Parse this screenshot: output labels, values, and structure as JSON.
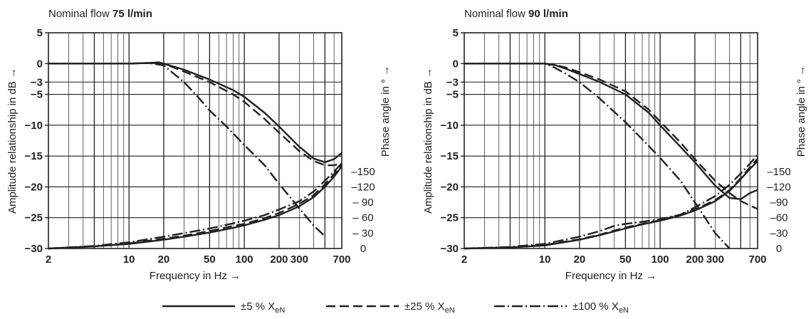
{
  "figure": {
    "legend": [
      {
        "label": "±5 % X",
        "sub": "eN",
        "dash": "solid"
      },
      {
        "label": "±25 % X",
        "sub": "eN",
        "dash": "dash"
      },
      {
        "label": "±100 % X",
        "sub": "eN",
        "dash": "dashdot"
      }
    ]
  },
  "chart_data": [
    {
      "type": "line",
      "title_prefix": "Nominal flow ",
      "title_bold": "75 l/min",
      "xlabel": "Frequency in Hz →",
      "ylabel": "Amplitude relationship in dB →",
      "y2label": "Phase angle in ° →",
      "xscale": "log",
      "xlim": [
        2,
        700
      ],
      "ylim": [
        -30,
        5
      ],
      "y2lim": [
        0,
        180
      ],
      "x_ticks": [
        {
          "v": 2,
          "t": "2"
        },
        {
          "v": 10,
          "t": "10"
        },
        {
          "v": 20,
          "t": "20"
        },
        {
          "v": 50,
          "t": "50"
        },
        {
          "v": 100,
          "t": "100"
        },
        {
          "v": 200,
          "t": "200"
        },
        {
          "v": 300,
          "t": "300"
        },
        {
          "v": 700,
          "t": "700"
        }
      ],
      "y_ticks": [
        {
          "v": 5,
          "t": "5"
        },
        {
          "v": 0,
          "t": "0"
        },
        {
          "v": -3,
          "t": "−3"
        },
        {
          "v": -5,
          "t": "−5"
        },
        {
          "v": -10,
          "t": "−10"
        },
        {
          "v": -15,
          "t": "−15"
        },
        {
          "v": -20,
          "t": "−20"
        },
        {
          "v": -25,
          "t": "−25"
        },
        {
          "v": -30,
          "t": "−30"
        }
      ],
      "y2_ticks": [
        {
          "v": 0,
          "t": "0"
        },
        {
          "v": 30,
          "t": "– 30"
        },
        {
          "v": 60,
          "t": "– 60"
        },
        {
          "v": 90,
          "t": "– 90"
        },
        {
          "v": 120,
          "t": "–120"
        },
        {
          "v": 150,
          "t": "–150"
        }
      ],
      "grid": true,
      "amplitude_series": [
        {
          "name": "±5 % X eN",
          "dash": "solid",
          "x": [
            2,
            5,
            10,
            15,
            18,
            20,
            30,
            50,
            80,
            100,
            150,
            200,
            300,
            400,
            500,
            600,
            700
          ],
          "y": [
            0,
            0,
            0,
            0.1,
            0.2,
            0,
            -1.0,
            -2.6,
            -4.3,
            -5.4,
            -8.0,
            -10.2,
            -13.5,
            -15.4,
            -16.0,
            -15.5,
            -14.5
          ]
        },
        {
          "name": "±25 % X eN",
          "dash": "dash",
          "x": [
            2,
            5,
            10,
            15,
            18,
            20,
            30,
            50,
            80,
            100,
            150,
            200,
            300,
            400,
            500,
            600,
            700
          ],
          "y": [
            0,
            0,
            0,
            0.1,
            0.2,
            0,
            -1.3,
            -3.0,
            -5.0,
            -6.2,
            -9.0,
            -11.2,
            -14.2,
            -15.8,
            -16.5,
            -16.5,
            -16.2
          ]
        },
        {
          "name": "±100 % X eN",
          "dash": "dashdot",
          "x": [
            2,
            5,
            10,
            15,
            20,
            30,
            40,
            50,
            70,
            100,
            150,
            200,
            300,
            400,
            500
          ],
          "y": [
            0,
            0,
            0,
            0.1,
            -0.3,
            -3.0,
            -5.5,
            -7.6,
            -10.2,
            -13.2,
            -16.5,
            -19.5,
            -23.5,
            -26.3,
            -28.0
          ]
        }
      ],
      "phase_series": [
        {
          "name": "±5 % X eN",
          "dash": "solid",
          "x": [
            2,
            5,
            10,
            20,
            30,
            50,
            80,
            100,
            150,
            200,
            300,
            400,
            500,
            600,
            700
          ],
          "y": [
            0,
            4,
            9,
            17,
            23,
            31,
            40,
            45,
            56,
            65,
            82,
            100,
            120,
            140,
            160
          ]
        },
        {
          "name": "±25 % X eN",
          "dash": "dash",
          "x": [
            2,
            5,
            10,
            20,
            30,
            50,
            80,
            100,
            150,
            200,
            300,
            400,
            500,
            600,
            700
          ],
          "y": [
            0,
            4,
            10,
            19,
            25,
            34,
            44,
            48,
            59,
            69,
            87,
            104,
            125,
            145,
            162
          ]
        },
        {
          "name": "±100 % X eN",
          "dash": "dashdot",
          "x": [
            2,
            5,
            10,
            20,
            30,
            50,
            80,
            100,
            150,
            200,
            300,
            400,
            500,
            600,
            700
          ],
          "y": [
            0,
            5,
            12,
            23,
            30,
            39,
            49,
            54,
            65,
            76,
            92,
            111,
            132,
            150,
            166
          ]
        }
      ]
    },
    {
      "type": "line",
      "title_prefix": "Nominal flow ",
      "title_bold": "90 l/min",
      "xlabel": "Frequency in Hz →",
      "ylabel": "Amplitude relationship in dB →",
      "y2label": "Phase angle in ° →",
      "xscale": "log",
      "xlim": [
        2,
        700
      ],
      "ylim": [
        -30,
        5
      ],
      "y2lim": [
        0,
        180
      ],
      "x_ticks": [
        {
          "v": 2,
          "t": "2"
        },
        {
          "v": 10,
          "t": "10"
        },
        {
          "v": 20,
          "t": "20"
        },
        {
          "v": 50,
          "t": "50"
        },
        {
          "v": 100,
          "t": "100"
        },
        {
          "v": 200,
          "t": "200"
        },
        {
          "v": 300,
          "t": "300"
        },
        {
          "v": 700,
          "t": "700"
        }
      ],
      "y_ticks": [
        {
          "v": 5,
          "t": "5"
        },
        {
          "v": 0,
          "t": "0"
        },
        {
          "v": -3,
          "t": "−3"
        },
        {
          "v": -5,
          "t": "−5"
        },
        {
          "v": -10,
          "t": "−10"
        },
        {
          "v": -15,
          "t": "−15"
        },
        {
          "v": -20,
          "t": "−20"
        },
        {
          "v": -25,
          "t": "−25"
        },
        {
          "v": -30,
          "t": "−30"
        }
      ],
      "y2_ticks": [
        {
          "v": 0,
          "t": "0"
        },
        {
          "v": 30,
          "t": "–30"
        },
        {
          "v": 60,
          "t": "–60"
        },
        {
          "v": 90,
          "t": "–90"
        },
        {
          "v": 120,
          "t": "–120"
        },
        {
          "v": 150,
          "t": "–150"
        }
      ],
      "grid": true,
      "amplitude_series": [
        {
          "name": "±5 % X eN",
          "dash": "solid",
          "x": [
            2,
            5,
            10,
            12,
            15,
            20,
            30,
            50,
            80,
            100,
            150,
            200,
            300,
            400,
            500,
            600,
            700
          ],
          "y": [
            0,
            0,
            0,
            -0.2,
            -0.8,
            -1.7,
            -3.0,
            -5.0,
            -8.0,
            -10.0,
            -13.5,
            -16.0,
            -19.8,
            -21.8,
            -22.0,
            -21.0,
            -20.5
          ]
        },
        {
          "name": "±25 % X eN",
          "dash": "dash",
          "x": [
            2,
            5,
            10,
            12,
            15,
            20,
            30,
            50,
            80,
            100,
            150,
            200,
            300,
            400,
            500,
            600,
            700
          ],
          "y": [
            0,
            0,
            0,
            -0.2,
            -0.6,
            -1.4,
            -2.6,
            -4.5,
            -7.5,
            -9.4,
            -12.8,
            -15.5,
            -19.0,
            -21.0,
            -22.3,
            -23.0,
            -23.6
          ]
        },
        {
          "name": "±100 % X eN",
          "dash": "dashdot",
          "x": [
            2,
            5,
            10,
            12,
            15,
            20,
            30,
            50,
            80,
            100,
            150,
            200,
            300,
            400
          ],
          "y": [
            0,
            0,
            0,
            -0.6,
            -1.6,
            -3.0,
            -5.7,
            -9.5,
            -13.4,
            -15.3,
            -19.0,
            -22.5,
            -27.5,
            -30.0
          ]
        }
      ],
      "phase_series": [
        {
          "name": "±5 % X eN",
          "dash": "solid",
          "x": [
            2,
            5,
            10,
            20,
            30,
            50,
            70,
            100,
            150,
            200,
            300,
            400,
            500,
            600,
            700
          ],
          "y": [
            0,
            2,
            6,
            17,
            26,
            39,
            47,
            54,
            64,
            74,
            92,
            112,
            135,
            155,
            170
          ]
        },
        {
          "name": "±25 % X eN",
          "dash": "dash",
          "x": [
            2,
            5,
            10,
            20,
            30,
            50,
            70,
            100,
            150,
            200,
            300,
            400,
            500,
            600,
            700
          ],
          "y": [
            0,
            2,
            7,
            18,
            27,
            41,
            48,
            55,
            66,
            76,
            94,
            114,
            137,
            158,
            175
          ]
        },
        {
          "name": "±100 % X eN",
          "dash": "dashdot",
          "x": [
            2,
            5,
            10,
            20,
            30,
            40,
            50,
            70,
            100,
            150,
            200,
            300,
            400,
            500,
            600,
            700
          ],
          "y": [
            0,
            3,
            9,
            23,
            34,
            44,
            48,
            52,
            57,
            66,
            80,
            102,
            124,
            146,
            165,
            183
          ]
        }
      ]
    }
  ]
}
